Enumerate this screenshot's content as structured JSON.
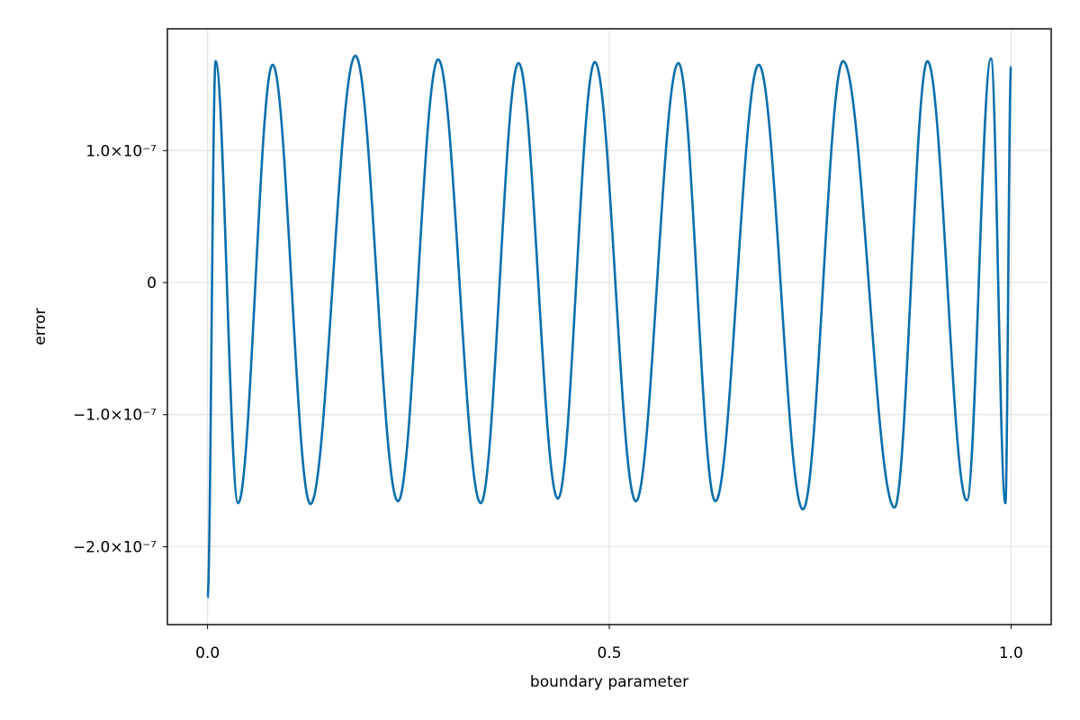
{
  "chart_data": {
    "type": "line",
    "xlabel": "boundary parameter",
    "ylabel": "error",
    "x": [
      0.0,
      0.01,
      0.038,
      0.081,
      0.128,
      0.184,
      0.237,
      0.287,
      0.34,
      0.387,
      0.436,
      0.482,
      0.533,
      0.586,
      0.632,
      0.686,
      0.741,
      0.791,
      0.855,
      0.896,
      0.945,
      0.975,
      0.993,
      1.0
    ],
    "series": [
      {
        "name": "error",
        "color": "#0a6fac",
        "values": [
          -2.386e-07,
          1.677e-07,
          -1.67e-07,
          1.65e-07,
          -1.677e-07,
          1.718e-07,
          -1.656e-07,
          1.69e-07,
          -1.67e-07,
          1.663e-07,
          -1.636e-07,
          1.67e-07,
          -1.656e-07,
          1.663e-07,
          -1.656e-07,
          1.65e-07,
          -1.718e-07,
          1.677e-07,
          -1.704e-07,
          1.677e-07,
          -1.65e-07,
          1.697e-07,
          -1.67e-07,
          1.636e-07
        ]
      }
    ],
    "xlim": [
      -0.05,
      1.05
    ],
    "ylim": [
      -2.59e-07,
      1.922e-07
    ],
    "xticks": [
      {
        "value": 0,
        "label": "0.0"
      },
      0.5,
      {
        "value": 1,
        "label": "1.0"
      }
    ],
    "yticks": [
      {
        "value": -2e-07,
        "label": "−2.0×10⁻⁷"
      },
      {
        "value": -1e-07,
        "label": "−1.0×10⁻⁷"
      },
      0,
      {
        "value": 1e-07,
        "label": "1.0×10⁻⁷"
      }
    ],
    "grid": true
  }
}
